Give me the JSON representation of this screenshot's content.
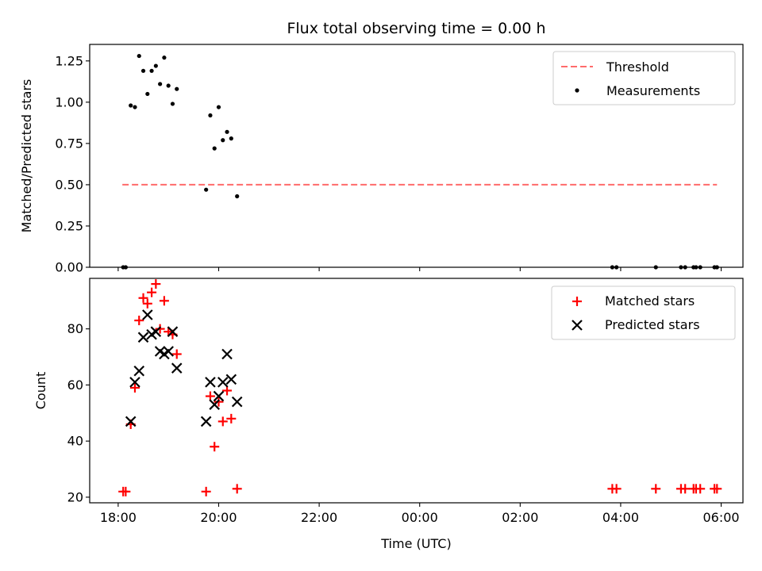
{
  "chart_data": [
    {
      "type": "scatter",
      "title": "Flux total observing time = 0.00 h",
      "xlabel": "",
      "ylabel": "Matched/Predicted stars",
      "xlim": [
        "17:26",
        "30:26"
      ],
      "ylim": [
        0,
        1.35
      ],
      "x_tick_labels": [],
      "y_ticks": [
        0.0,
        0.25,
        0.5,
        0.75,
        1.0,
        1.25
      ],
      "y_tick_labels": [
        "0.00",
        "0.25",
        "0.50",
        "0.75",
        "1.00",
        "1.25"
      ],
      "legend": {
        "placement": "upper right"
      },
      "threshold": {
        "name": "Threshold",
        "y": 0.5,
        "x": [
          "18:05",
          "29:55"
        ],
        "color": "#ff6b6b",
        "style": "dashed"
      },
      "series": [
        {
          "name": "Measurements",
          "marker": "dot",
          "color": "#000000",
          "points": [
            [
              "18:06",
              0.0
            ],
            [
              "18:09",
              0.0
            ],
            [
              "18:15",
              0.98
            ],
            [
              "18:20",
              0.97
            ],
            [
              "18:25",
              1.28
            ],
            [
              "18:30",
              1.19
            ],
            [
              "18:35",
              1.05
            ],
            [
              "18:40",
              1.19
            ],
            [
              "18:45",
              1.22
            ],
            [
              "18:50",
              1.11
            ],
            [
              "18:55",
              1.27
            ],
            [
              "19:00",
              1.1
            ],
            [
              "19:05",
              0.99
            ],
            [
              "19:10",
              1.08
            ],
            [
              "19:45",
              0.47
            ],
            [
              "19:50",
              0.92
            ],
            [
              "19:55",
              0.72
            ],
            [
              "20:00",
              0.97
            ],
            [
              "20:05",
              0.77
            ],
            [
              "20:10",
              0.82
            ],
            [
              "20:15",
              0.78
            ],
            [
              "20:22",
              0.43
            ],
            [
              "27:50",
              0.0
            ],
            [
              "27:55",
              0.0
            ],
            [
              "28:42",
              0.0
            ],
            [
              "29:12",
              0.0
            ],
            [
              "29:17",
              0.0
            ],
            [
              "29:27",
              0.0
            ],
            [
              "29:30",
              0.0
            ],
            [
              "29:35",
              0.0
            ],
            [
              "29:52",
              0.0
            ],
            [
              "29:55",
              0.0
            ]
          ]
        }
      ]
    },
    {
      "type": "scatter",
      "title": "",
      "xlabel": "Time (UTC)",
      "ylabel": "Count",
      "xlim": [
        "17:26",
        "30:26"
      ],
      "ylim": [
        18,
        98
      ],
      "x_ticks": [
        "18:00",
        "20:00",
        "22:00",
        "24:00",
        "26:00",
        "28:00",
        "30:00"
      ],
      "x_tick_labels": [
        "18:00",
        "20:00",
        "22:00",
        "00:00",
        "02:00",
        "04:00",
        "06:00"
      ],
      "y_ticks": [
        20,
        40,
        60,
        80
      ],
      "y_tick_labels": [
        "20",
        "40",
        "60",
        "80"
      ],
      "legend": {
        "placement": "upper right"
      },
      "series": [
        {
          "name": "Matched stars",
          "marker": "plus",
          "color": "#ff0000",
          "points": [
            [
              "18:06",
              22
            ],
            [
              "18:09",
              22
            ],
            [
              "18:15",
              46
            ],
            [
              "18:20",
              59
            ],
            [
              "18:25",
              83
            ],
            [
              "18:30",
              91
            ],
            [
              "18:35",
              89
            ],
            [
              "18:40",
              93
            ],
            [
              "18:45",
              96
            ],
            [
              "18:50",
              80
            ],
            [
              "18:55",
              90
            ],
            [
              "19:00",
              79
            ],
            [
              "19:05",
              78
            ],
            [
              "19:10",
              71
            ],
            [
              "19:45",
              22
            ],
            [
              "19:50",
              56
            ],
            [
              "19:55",
              38
            ],
            [
              "20:00",
              54
            ],
            [
              "20:05",
              47
            ],
            [
              "20:10",
              58
            ],
            [
              "20:15",
              48
            ],
            [
              "20:22",
              23
            ],
            [
              "27:50",
              23
            ],
            [
              "27:55",
              23
            ],
            [
              "28:42",
              23
            ],
            [
              "29:12",
              23
            ],
            [
              "29:17",
              23
            ],
            [
              "29:27",
              23
            ],
            [
              "29:30",
              23
            ],
            [
              "29:35",
              23
            ],
            [
              "29:52",
              23
            ],
            [
              "29:55",
              23
            ]
          ]
        },
        {
          "name": "Predicted stars",
          "marker": "x",
          "color": "#000000",
          "points": [
            [
              "18:15",
              47
            ],
            [
              "18:20",
              61
            ],
            [
              "18:25",
              65
            ],
            [
              "18:30",
              77
            ],
            [
              "18:35",
              85
            ],
            [
              "18:40",
              78
            ],
            [
              "18:45",
              79
            ],
            [
              "18:50",
              72
            ],
            [
              "18:55",
              71
            ],
            [
              "19:00",
              72
            ],
            [
              "19:05",
              79
            ],
            [
              "19:10",
              66
            ],
            [
              "19:45",
              47
            ],
            [
              "19:50",
              61
            ],
            [
              "19:55",
              53
            ],
            [
              "20:00",
              56
            ],
            [
              "20:05",
              61
            ],
            [
              "20:10",
              71
            ],
            [
              "20:15",
              62
            ],
            [
              "20:22",
              54
            ]
          ]
        }
      ]
    }
  ]
}
